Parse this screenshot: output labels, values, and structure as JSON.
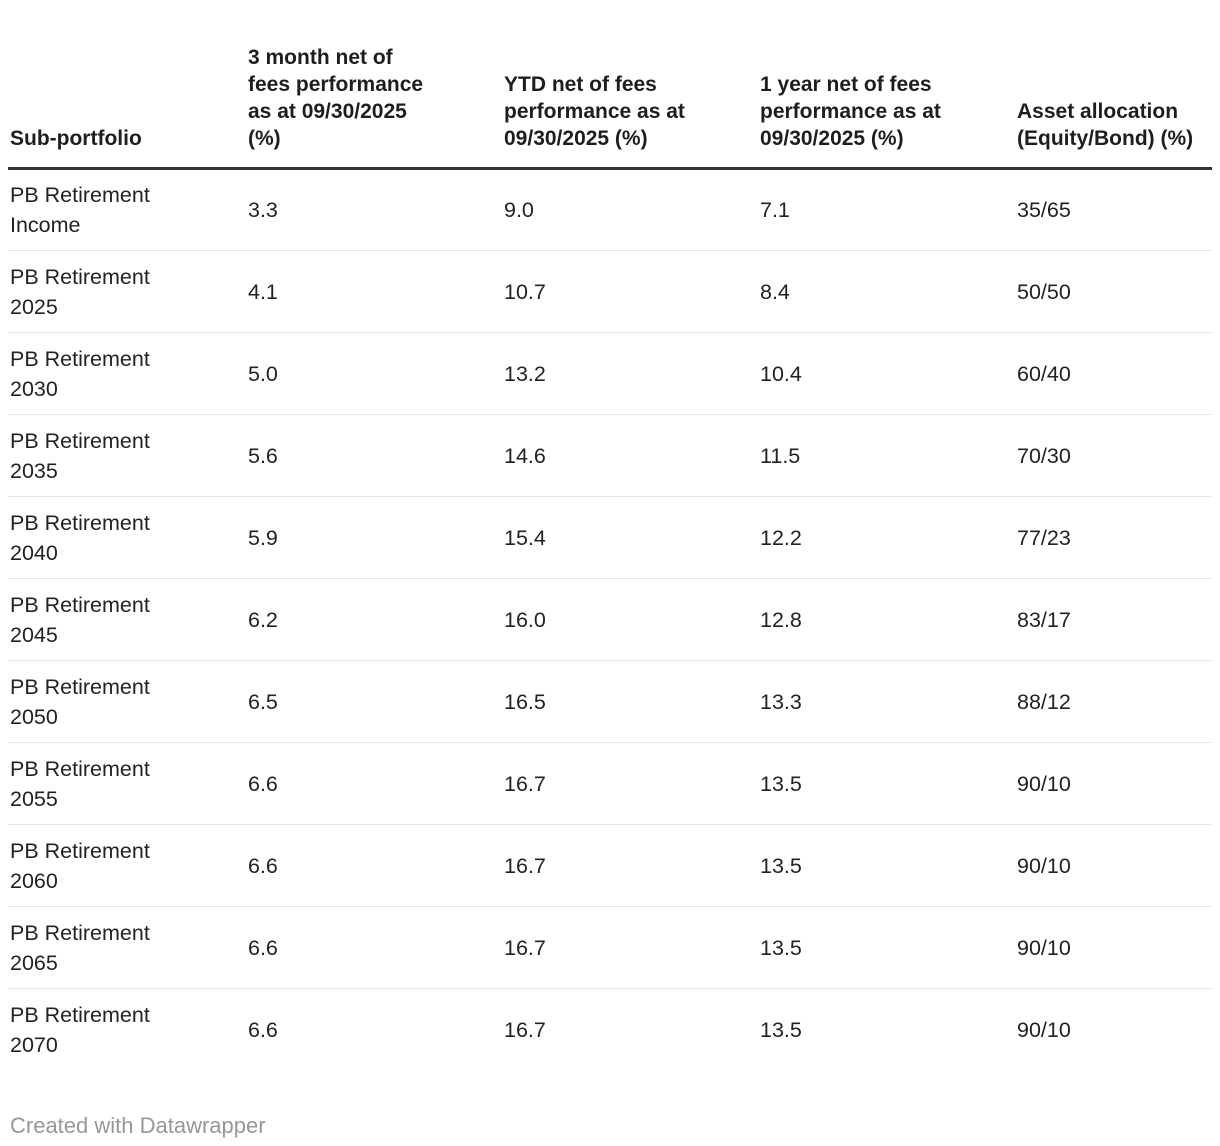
{
  "chart_data": {
    "type": "table",
    "columns": [
      "Sub-portfolio",
      "3 month net of\nfees performance\nas at 09/30/2025\n(%)",
      "YTD net of fees\nperformance as at\n09/30/2025 (%)",
      "1 year net of fees\nperformance as at\n09/30/2025 (%)",
      "Asset allocation\n(Equity/Bond) (%)"
    ],
    "rows": [
      [
        "PB Retirement Income",
        "3.3",
        "9.0",
        "7.1",
        "35/65"
      ],
      [
        "PB Retirement 2025",
        "4.1",
        "10.7",
        "8.4",
        "50/50"
      ],
      [
        "PB Retirement 2030",
        "5.0",
        "13.2",
        "10.4",
        "60/40"
      ],
      [
        "PB Retirement 2035",
        "5.6",
        "14.6",
        "11.5",
        "70/30"
      ],
      [
        "PB Retirement 2040",
        "5.9",
        "15.4",
        "12.2",
        "77/23"
      ],
      [
        "PB Retirement 2045",
        "6.2",
        "16.0",
        "12.8",
        "83/17"
      ],
      [
        "PB Retirement 2050",
        "6.5",
        "16.5",
        "13.3",
        "88/12"
      ],
      [
        "PB Retirement 2055",
        "6.6",
        "16.7",
        "13.5",
        "90/10"
      ],
      [
        "PB Retirement 2060",
        "6.6",
        "16.7",
        "13.5",
        "90/10"
      ],
      [
        "PB Retirement 2065",
        "6.6",
        "16.7",
        "13.5",
        "90/10"
      ],
      [
        "PB Retirement 2070",
        "6.6",
        "16.7",
        "13.5",
        "90/10"
      ]
    ]
  },
  "footer": {
    "attribution": "Created with Datawrapper"
  },
  "colors": {
    "text": "#222222",
    "header_rule": "#333333",
    "row_rule": "#e6e6e6",
    "attribution": "#979797",
    "background": "#ffffff"
  }
}
